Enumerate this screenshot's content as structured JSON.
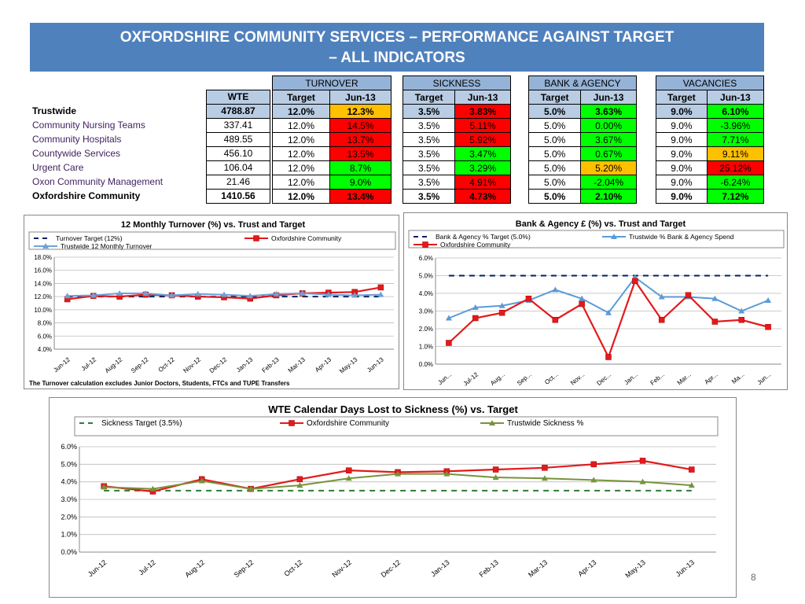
{
  "title": {
    "line1": "OXFORDSHIRE COMMUNITY SERVICES – PERFORMANCE AGAINST TARGET",
    "line2": "– ALL INDICATORS"
  },
  "table": {
    "groups": [
      "TURNOVER",
      "SICKNESS",
      "BANK & AGENCY",
      "VACANCIES"
    ],
    "wte_header": "WTE",
    "sub_headers": [
      "Target",
      "Jun-13"
    ],
    "rows": [
      {
        "name": "Trustwide",
        "wte": "4788.87",
        "turnover": [
          "12.0%",
          "12.3%"
        ],
        "sickness": [
          "3.5%",
          "3.83%"
        ],
        "bank": [
          "5.0%",
          "3.63%"
        ],
        "vacancies": [
          "9.0%",
          "6.10%"
        ]
      },
      {
        "name": "Community Nursing Teams",
        "wte": "337.41",
        "turnover": [
          "12.0%",
          "14.5%"
        ],
        "sickness": [
          "3.5%",
          "5.11%"
        ],
        "bank": [
          "5.0%",
          "0.00%"
        ],
        "vacancies": [
          "9.0%",
          "-3.96%"
        ]
      },
      {
        "name": "Community Hospitals",
        "wte": "489.55",
        "turnover": [
          "12.0%",
          "13.7%"
        ],
        "sickness": [
          "3.5%",
          "5.92%"
        ],
        "bank": [
          "5.0%",
          "3.67%"
        ],
        "vacancies": [
          "9.0%",
          "7.71%"
        ]
      },
      {
        "name": "Countywide Services",
        "wte": "456.10",
        "turnover": [
          "12.0%",
          "13.5%"
        ],
        "sickness": [
          "3.5%",
          "3.47%"
        ],
        "bank": [
          "5.0%",
          "0.67%"
        ],
        "vacancies": [
          "9.0%",
          "9.11%"
        ]
      },
      {
        "name": "Urgent Care",
        "wte": "106.04",
        "turnover": [
          "12.0%",
          "8.7%"
        ],
        "sickness": [
          "3.5%",
          "3.29%"
        ],
        "bank": [
          "5.0%",
          "5.20%"
        ],
        "vacancies": [
          "9.0%",
          "25.12%"
        ]
      },
      {
        "name": "Oxon Community Management",
        "wte": "21.46",
        "turnover": [
          "12.0%",
          "9.0%"
        ],
        "sickness": [
          "3.5%",
          "4.91%"
        ],
        "bank": [
          "5.0%",
          "-2.04%"
        ],
        "vacancies": [
          "9.0%",
          "-6.24%"
        ]
      },
      {
        "name": "Oxfordshire Community",
        "wte": "1410.56",
        "turnover": [
          "12.0%",
          "13.4%"
        ],
        "sickness": [
          "3.5%",
          "4.73%"
        ],
        "bank": [
          "5.0%",
          "2.10%"
        ],
        "vacancies": [
          "9.0%",
          "7.12%"
        ]
      }
    ],
    "status_colors": {
      "turnover": [
        "amber",
        "red",
        "red",
        "red",
        "green",
        "green",
        "red"
      ],
      "sickness": [
        "red",
        "red",
        "red",
        "green",
        "green",
        "red",
        "red"
      ],
      "bank": [
        "green",
        "green",
        "green",
        "green",
        "amber",
        "green",
        "green"
      ],
      "vacancies": [
        "green",
        "green",
        "green",
        "amber",
        "red",
        "green",
        "green"
      ]
    },
    "colors": {
      "red": "#ff0000",
      "green": "#00ff00",
      "amber": "#ffc000",
      "header": "#95b3d7",
      "subheader": "#b8cce4"
    }
  },
  "chart_data": [
    {
      "id": "turnover",
      "type": "line",
      "title": "12 Monthly Turnover (%) vs. Trust and Target",
      "categories": [
        "Jun-12",
        "Jul-12",
        "Aug-12",
        "Sep-12",
        "Oct-12",
        "Nov-12",
        "Dec-12",
        "Jan-13",
        "Feb-13",
        "Mar-13",
        "Apr-13",
        "May-13",
        "Jun-13"
      ],
      "ylim": [
        4,
        18
      ],
      "yticks": [
        "18.0%",
        "16.0%",
        "14.0%",
        "12.0%",
        "10.0%",
        "8.0%",
        "6.0%",
        "4.0%"
      ],
      "series": [
        {
          "name": "Turnover Target (12%)",
          "values": [
            12,
            12,
            12,
            12,
            12,
            12,
            12,
            12,
            12,
            12,
            12,
            12,
            12
          ],
          "color": "#002060",
          "style": "dash"
        },
        {
          "name": "Oxfordshire Community",
          "values": [
            11.6,
            12.1,
            12.0,
            12.3,
            12.2,
            12.0,
            11.9,
            11.7,
            12.2,
            12.5,
            12.6,
            12.7,
            13.4
          ],
          "color": "#e31a1c",
          "style": "square"
        },
        {
          "name": "Trustwide 12 Monthly Turnover",
          "values": [
            12.1,
            12.2,
            12.5,
            12.5,
            12.2,
            12.4,
            12.3,
            12.1,
            12.4,
            12.5,
            12.3,
            12.2,
            12.3
          ],
          "color": "#6fa0d8",
          "style": "triangle"
        }
      ],
      "legend_rows": [
        [
          "Turnover Target (12%)",
          "Oxfordshire Community"
        ],
        [
          "Trustwide 12 Monthly Turnover"
        ]
      ],
      "footnote": "The Turnover calculation excludes Junior Doctors, Students, FTCs and TUPE Transfers"
    },
    {
      "id": "bank",
      "type": "line",
      "title": "Bank & Agency £ (%) vs. Trust and Target",
      "categories": [
        "Jun...",
        "Jul-12",
        "Aug...",
        "Sep...",
        "Oct...",
        "Nov...",
        "Dec...",
        "Jan...",
        "Feb...",
        "Mar...",
        "Apr...",
        "Ma...",
        "Jun..."
      ],
      "ylim": [
        0,
        6
      ],
      "yticks": [
        "6.0%",
        "5.0%",
        "4.0%",
        "3.0%",
        "2.0%",
        "1.0%",
        "0.0%"
      ],
      "series": [
        {
          "name": "Bank & Agency % Target (5.0%)",
          "values": [
            5,
            5,
            5,
            5,
            5,
            5,
            5,
            5,
            5,
            5,
            5,
            5,
            5
          ],
          "color": "#002060",
          "style": "dash"
        },
        {
          "name": "Trustwide % Bank & Agency Spend",
          "values": [
            2.6,
            3.2,
            3.3,
            3.6,
            4.2,
            3.7,
            2.9,
            4.9,
            3.8,
            3.8,
            3.7,
            3.0,
            3.6
          ],
          "color": "#5b9bd5",
          "style": "triangle"
        },
        {
          "name": "Oxfordshire Community",
          "values": [
            1.2,
            2.6,
            2.9,
            3.7,
            2.5,
            3.4,
            0.4,
            4.7,
            2.5,
            3.9,
            2.4,
            2.5,
            2.1
          ],
          "color": "#e31a1c",
          "style": "square"
        }
      ],
      "legend_rows": [
        [
          "Bank & Agency % Target (5.0%)",
          "Trustwide % Bank & Agency Spend"
        ],
        [
          "Oxfordshire Community"
        ]
      ]
    },
    {
      "id": "sickness",
      "type": "line",
      "title": "WTE Calendar Days Lost to Sickness (%) vs. Target",
      "categories": [
        "Jun-12",
        "Jul-12",
        "Aug-12",
        "Sep-12",
        "Oct-12",
        "Nov-12",
        "Dec-12",
        "Jan-13",
        "Feb-13",
        "Mar-13",
        "Apr-13",
        "May-13",
        "Jun-13"
      ],
      "ylim": [
        0,
        6
      ],
      "yticks": [
        "6.0%",
        "5.0%",
        "4.0%",
        "3.0%",
        "2.0%",
        "1.0%",
        "0.0%"
      ],
      "series": [
        {
          "name": "Sickness Target (3.5%)",
          "values": [
            3.5,
            3.5,
            3.5,
            3.5,
            3.5,
            3.5,
            3.5,
            3.5,
            3.5,
            3.5,
            3.5,
            3.5,
            3.5
          ],
          "color": "#2e7d32",
          "style": "dash"
        },
        {
          "name": "Oxfordshire Community",
          "values": [
            3.75,
            3.45,
            4.15,
            3.6,
            4.15,
            4.65,
            4.55,
            4.6,
            4.7,
            4.8,
            5.0,
            5.2,
            4.7
          ],
          "color": "#e31a1c",
          "style": "square"
        },
        {
          "name": "Trustwide Sickness %",
          "values": [
            3.7,
            3.6,
            4.05,
            3.6,
            3.8,
            4.2,
            4.45,
            4.45,
            4.25,
            4.2,
            4.1,
            4.0,
            3.8
          ],
          "color": "#77933c",
          "style": "triangle"
        }
      ],
      "legend_rows": [
        [
          "Sickness Target (3.5%)",
          "Oxfordshire Community",
          "Trustwide Sickness %"
        ]
      ]
    }
  ],
  "page_number": "8"
}
